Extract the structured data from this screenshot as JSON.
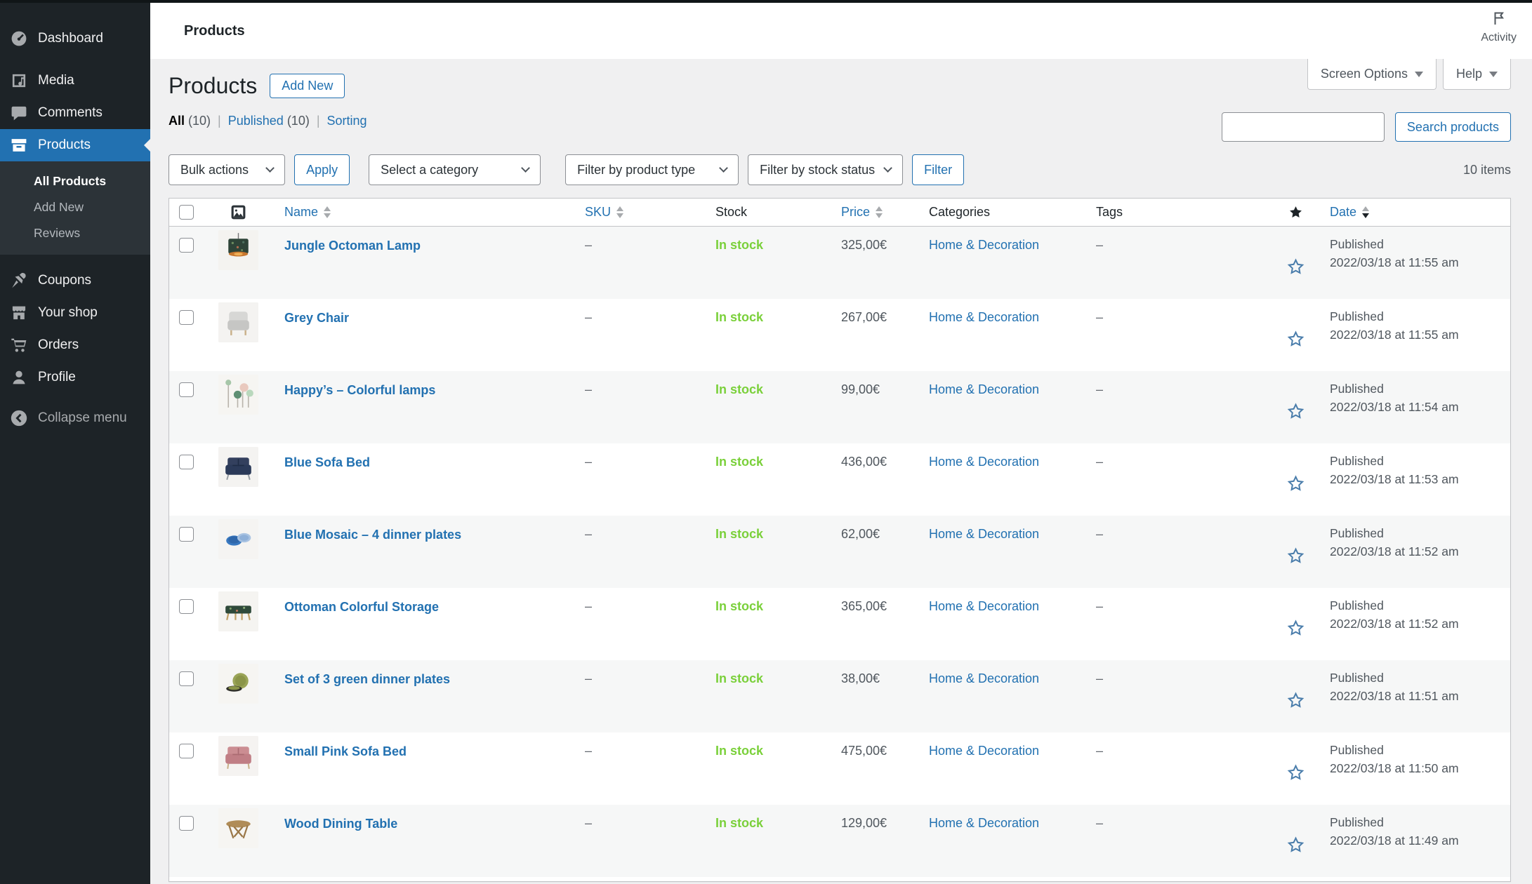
{
  "colors": {
    "accent": "#2271b1",
    "sidebar_bg": "#1d2327",
    "sidebar_submenu_bg": "#2c3338",
    "active_menu": "#2271b1",
    "in_stock_green": "#7ad03a",
    "content_bg": "#f0f0f1",
    "row_stripe": "#f6f7f7",
    "table_border": "#c3c4c7"
  },
  "topbar": {
    "title": "Products",
    "activity_label": "Activity"
  },
  "meta": {
    "screen_options": "Screen Options",
    "help": "Help"
  },
  "sidebar": {
    "items": [
      {
        "id": "dashboard",
        "label": "Dashboard",
        "icon": "dashboard-icon",
        "sep": true
      },
      {
        "id": "media",
        "label": "Media",
        "icon": "media-icon",
        "sep": true
      },
      {
        "id": "comments",
        "label": "Comments",
        "icon": "comments-icon"
      },
      {
        "id": "products",
        "label": "Products",
        "icon": "products-icon",
        "active": true,
        "submenu": true
      },
      {
        "id": "coupons",
        "label": "Coupons",
        "icon": "coupons-icon",
        "sep": true
      },
      {
        "id": "your-shop",
        "label": "Your shop",
        "icon": "shop-icon"
      },
      {
        "id": "orders",
        "label": "Orders",
        "icon": "orders-icon"
      },
      {
        "id": "profile",
        "label": "Profile",
        "icon": "profile-icon"
      }
    ],
    "submenu": [
      {
        "label": "All Products",
        "current": true
      },
      {
        "label": "Add New",
        "current": false
      },
      {
        "label": "Reviews",
        "current": false
      }
    ],
    "collapse_label": "Collapse menu"
  },
  "page": {
    "title": "Products",
    "add_new": "Add New",
    "separator": "|",
    "views": [
      {
        "label": "All",
        "count": "(10)",
        "current": true
      },
      {
        "label": "Published",
        "count": "(10)",
        "current": false
      },
      {
        "label": "Sorting",
        "count": "",
        "current": false
      }
    ],
    "items_count": "10 items"
  },
  "search": {
    "value": "",
    "placeholder": "",
    "button": "Search products"
  },
  "filters": {
    "bulk_actions": "Bulk actions",
    "apply": "Apply",
    "category": "Select a category",
    "product_type": "Filter by product type",
    "stock_status": "Filter by stock status",
    "filter": "Filter"
  },
  "table": {
    "columns": [
      {
        "key": "cb",
        "type": "checkbox"
      },
      {
        "key": "image",
        "type": "image",
        "icon": "image-column-icon"
      },
      {
        "key": "name",
        "label": "Name",
        "sortable": true
      },
      {
        "key": "sku",
        "label": "SKU",
        "sortable": true
      },
      {
        "key": "stock",
        "label": "Stock",
        "sortable": false
      },
      {
        "key": "price",
        "label": "Price",
        "sortable": true
      },
      {
        "key": "categories",
        "label": "Categories",
        "sortable": false
      },
      {
        "key": "tags",
        "label": "Tags",
        "sortable": false
      },
      {
        "key": "featured",
        "type": "star",
        "icon": "featured-star-icon"
      },
      {
        "key": "date",
        "label": "Date",
        "sortable": true,
        "sorted": "desc"
      }
    ],
    "rows": [
      {
        "name": "Jungle Octoman Lamp",
        "sku": "–",
        "stock": "In stock",
        "price": "325,00€",
        "categories": "Home & Decoration",
        "tags": "–",
        "status": "Published",
        "date": "2022/03/18 at 11:55 am",
        "thumb": "jungle-lamp"
      },
      {
        "name": "Grey Chair",
        "sku": "–",
        "stock": "In stock",
        "price": "267,00€",
        "categories": "Home & Decoration",
        "tags": "–",
        "status": "Published",
        "date": "2022/03/18 at 11:55 am",
        "thumb": "grey-chair"
      },
      {
        "name": "Happy’s – Colorful lamps",
        "sku": "–",
        "stock": "In stock",
        "price": "99,00€",
        "categories": "Home & Decoration",
        "tags": "–",
        "status": "Published",
        "date": "2022/03/18 at 11:54 am",
        "thumb": "colorful-lamps"
      },
      {
        "name": "Blue Sofa Bed",
        "sku": "–",
        "stock": "In stock",
        "price": "436,00€",
        "categories": "Home & Decoration",
        "tags": "–",
        "status": "Published",
        "date": "2022/03/18 at 11:53 am",
        "thumb": "blue-sofa"
      },
      {
        "name": "Blue Mosaic – 4 dinner plates",
        "sku": "–",
        "stock": "In stock",
        "price": "62,00€",
        "categories": "Home & Decoration",
        "tags": "–",
        "status": "Published",
        "date": "2022/03/18 at 11:52 am",
        "thumb": "blue-plates"
      },
      {
        "name": "Ottoman Colorful Storage",
        "sku": "–",
        "stock": "In stock",
        "price": "365,00€",
        "categories": "Home & Decoration",
        "tags": "–",
        "status": "Published",
        "date": "2022/03/18 at 11:52 am",
        "thumb": "ottoman"
      },
      {
        "name": "Set of 3 green dinner plates",
        "sku": "–",
        "stock": "In stock",
        "price": "38,00€",
        "categories": "Home & Decoration",
        "tags": "–",
        "status": "Published",
        "date": "2022/03/18 at 11:51 am",
        "thumb": "green-plates"
      },
      {
        "name": "Small Pink Sofa Bed",
        "sku": "–",
        "stock": "In stock",
        "price": "475,00€",
        "categories": "Home & Decoration",
        "tags": "–",
        "status": "Published",
        "date": "2022/03/18 at 11:50 am",
        "thumb": "pink-sofa"
      },
      {
        "name": "Wood Dining Table",
        "sku": "–",
        "stock": "In stock",
        "price": "129,00€",
        "categories": "Home & Decoration",
        "tags": "–",
        "status": "Published",
        "date": "2022/03/18 at 11:49 am",
        "thumb": "wood-table"
      }
    ]
  }
}
